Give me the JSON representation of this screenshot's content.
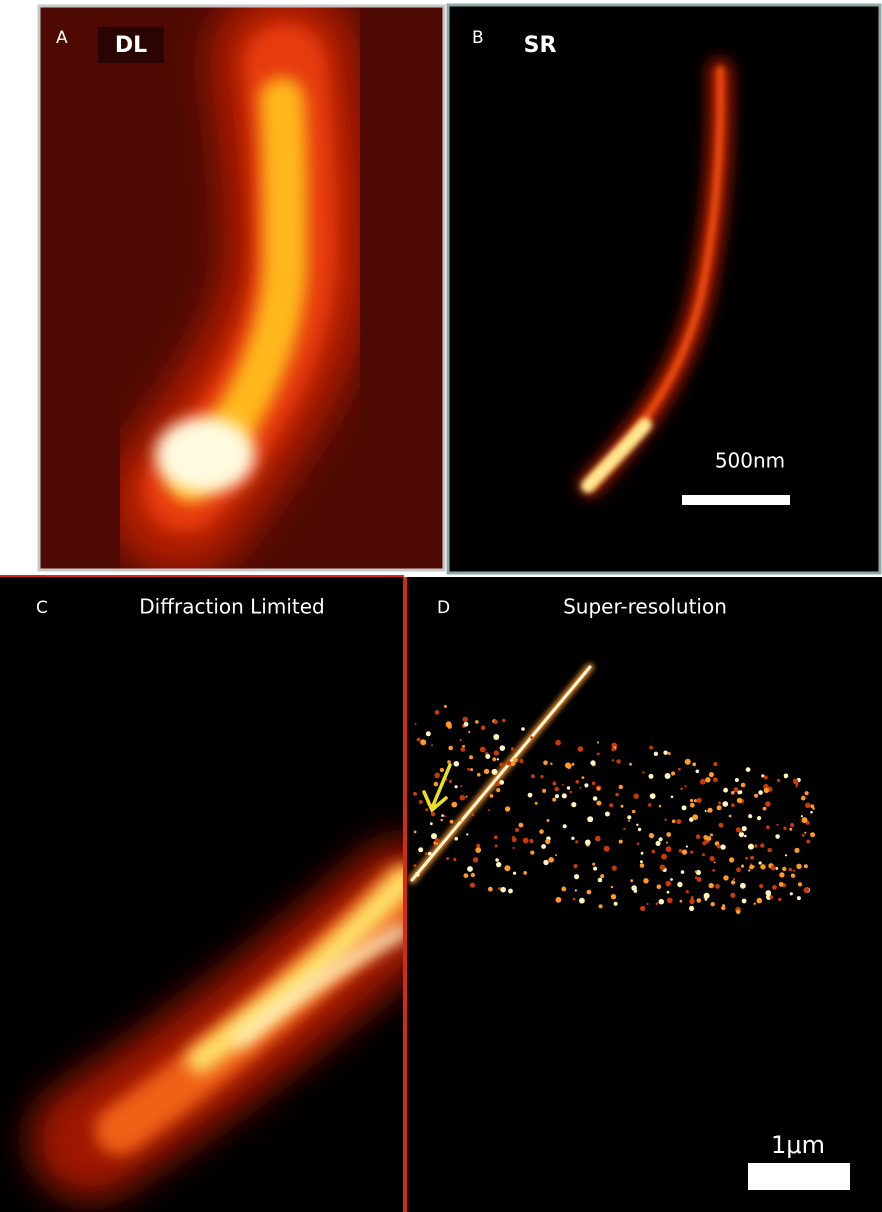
{
  "panels": [
    {
      "letter": "A",
      "label": "DL"
    },
    {
      "letter": "B",
      "label": "SR",
      "scale_bar": "500nm"
    },
    {
      "letter": "C",
      "title": "Diffraction Limited"
    },
    {
      "letter": "D",
      "title": "Super-resolution",
      "scale_bar": "1μm"
    }
  ]
}
